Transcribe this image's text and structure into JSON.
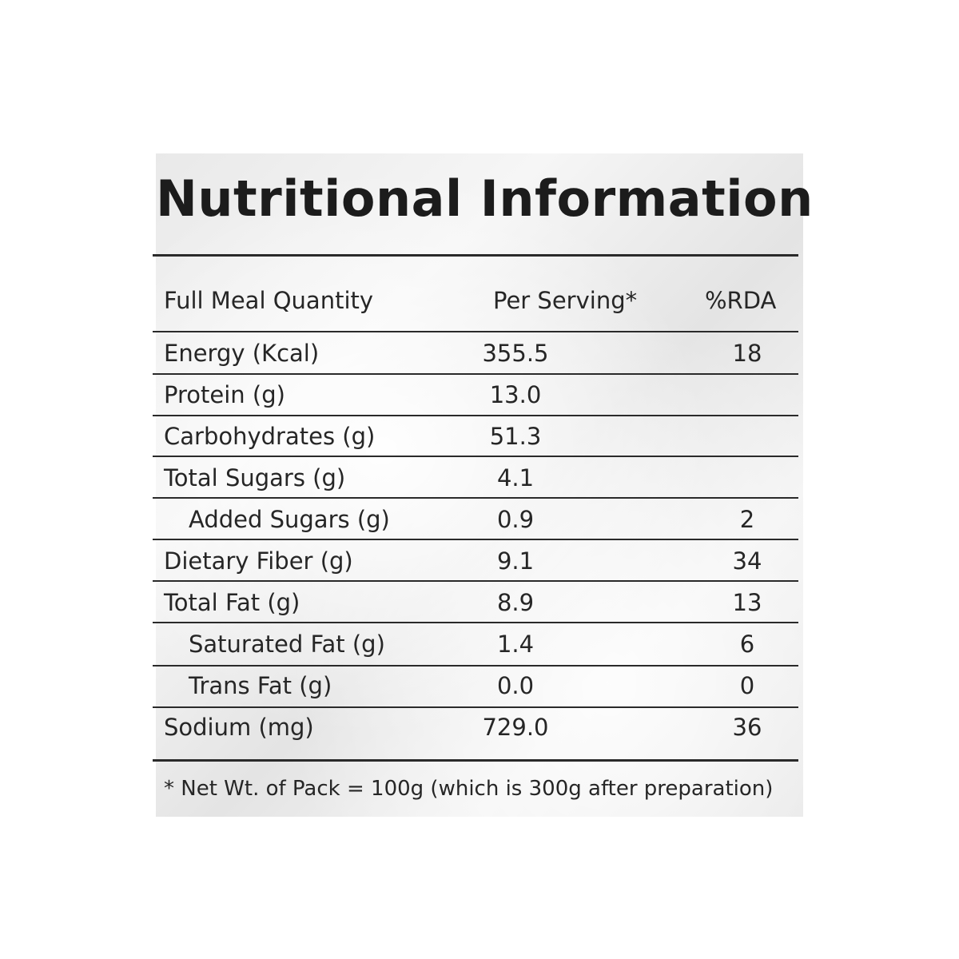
{
  "title": "Nutritional Information",
  "header": {
    "quantity": "Full Meal Quantity",
    "per_serving": "Per Serving*",
    "rda": "%RDA"
  },
  "rows": [
    {
      "name": "Energy (Kcal)",
      "value": "355.5",
      "rda": "18",
      "indent": false
    },
    {
      "name": "Protein (g)",
      "value": "13.0",
      "rda": "",
      "indent": false
    },
    {
      "name": "Carbohydrates (g)",
      "value": "51.3",
      "rda": "",
      "indent": false
    },
    {
      "name": "Total Sugars (g)",
      "value": "4.1",
      "rda": "",
      "indent": false
    },
    {
      "name": "Added Sugars (g)",
      "value": "0.9",
      "rda": "2",
      "indent": true
    },
    {
      "name": "Dietary Fiber (g)",
      "value": "9.1",
      "rda": "34",
      "indent": false
    },
    {
      "name": "Total Fat (g)",
      "value": "8.9",
      "rda": "13",
      "indent": false
    },
    {
      "name": "Saturated Fat (g)",
      "value": "1.4",
      "rda": "6",
      "indent": true
    },
    {
      "name": "Trans Fat (g)",
      "value": "0.0",
      "rda": "0",
      "indent": true
    },
    {
      "name": "Sodium (mg)",
      "value": "729.0",
      "rda": "36",
      "indent": false
    }
  ],
  "footnote": "* Net Wt. of Pack = 100g (which is 300g after preparation)"
}
